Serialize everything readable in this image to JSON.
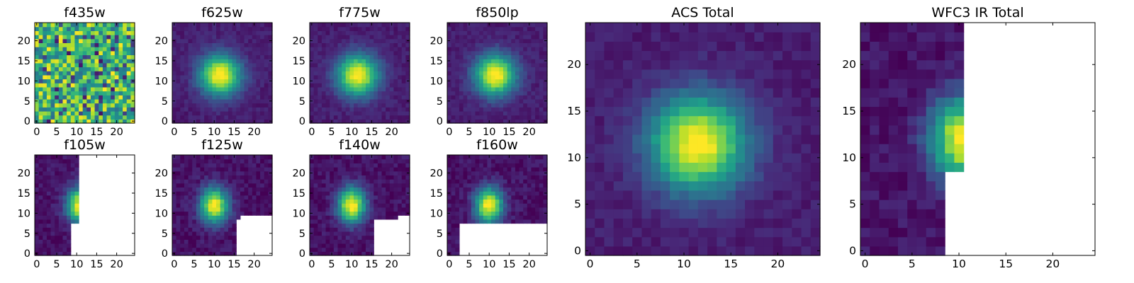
{
  "chart_data": [
    {
      "id": "f435w",
      "title": "f435w",
      "type": "heatmap",
      "pattern": "noise",
      "seed": 7,
      "xlim": [
        0,
        24
      ],
      "ylim": [
        0,
        24
      ],
      "xticks": [
        0,
        5,
        10,
        15,
        20
      ],
      "yticks": [
        0,
        5,
        10,
        15,
        20
      ],
      "colormap": "viridis"
    },
    {
      "id": "f625w",
      "title": "f625w",
      "type": "heatmap",
      "pattern": "blob",
      "seed": 11,
      "center": [
        11.5,
        11.5
      ],
      "xlim": [
        0,
        24
      ],
      "ylim": [
        0,
        24
      ],
      "xticks": [
        0,
        5,
        10,
        15,
        20
      ],
      "yticks": [
        0,
        5,
        10,
        15,
        20
      ],
      "colormap": "viridis"
    },
    {
      "id": "f775w",
      "title": "f775w",
      "type": "heatmap",
      "pattern": "blob",
      "seed": 13,
      "center": [
        11.5,
        11.5
      ],
      "xlim": [
        0,
        24
      ],
      "ylim": [
        0,
        24
      ],
      "xticks": [
        0,
        5,
        10,
        15,
        20
      ],
      "yticks": [
        0,
        5,
        10,
        15,
        20
      ],
      "colormap": "viridis"
    },
    {
      "id": "f850lp",
      "title": "f850lp",
      "type": "heatmap",
      "pattern": "blob",
      "seed": 17,
      "center": [
        11.5,
        11.5
      ],
      "xlim": [
        0,
        24
      ],
      "ylim": [
        0,
        24
      ],
      "xticks": [
        0,
        5,
        10,
        15,
        20
      ],
      "yticks": [
        0,
        5,
        10,
        15,
        20
      ],
      "colormap": "viridis"
    },
    {
      "id": "f105w",
      "title": "f105w",
      "type": "heatmap",
      "pattern": "truncated",
      "seed": 19,
      "center": [
        11,
        12
      ],
      "coverage_max_col": [
        [
          0,
          8
        ],
        [
          8,
          10
        ]
      ],
      "xlim": [
        0,
        24
      ],
      "ylim": [
        0,
        24
      ],
      "xticks": [
        0,
        5,
        10,
        15,
        20
      ],
      "yticks": [
        0,
        5,
        10,
        15,
        20
      ],
      "colormap": "viridis"
    },
    {
      "id": "f125w",
      "title": "f125w",
      "type": "heatmap",
      "pattern": "truncated",
      "seed": 23,
      "center": [
        10,
        12
      ],
      "coverage_max_col": [
        [
          0,
          15
        ],
        [
          9,
          16
        ],
        [
          10,
          24
        ]
      ],
      "xlim": [
        0,
        24
      ],
      "ylim": [
        0,
        24
      ],
      "xticks": [
        0,
        5,
        10,
        15,
        20
      ],
      "yticks": [
        0,
        5,
        10,
        15,
        20
      ],
      "colormap": "viridis"
    },
    {
      "id": "f140w",
      "title": "f140w",
      "type": "heatmap",
      "pattern": "truncated",
      "seed": 29,
      "center": [
        10,
        12
      ],
      "coverage_max_col": [
        [
          0,
          15
        ],
        [
          9,
          21
        ],
        [
          10,
          24
        ]
      ],
      "xlim": [
        0,
        24
      ],
      "ylim": [
        0,
        24
      ],
      "xticks": [
        0,
        5,
        10,
        15,
        20
      ],
      "yticks": [
        0,
        5,
        10,
        15,
        20
      ],
      "colormap": "viridis"
    },
    {
      "id": "f160w",
      "title": "f160w",
      "type": "heatmap",
      "pattern": "truncated",
      "seed": 31,
      "center": [
        10,
        12
      ],
      "coverage_max_col": [
        [
          0,
          2
        ],
        [
          8,
          24
        ]
      ],
      "xlim": [
        0,
        24
      ],
      "ylim": [
        0,
        24
      ],
      "xticks": [
        0,
        5,
        10,
        15,
        20
      ],
      "yticks": [
        0,
        5,
        10,
        15,
        20
      ],
      "colormap": "viridis"
    },
    {
      "id": "acs_total",
      "title": "ACS Total",
      "type": "heatmap",
      "pattern": "blob",
      "seed": 37,
      "center": [
        11.5,
        11.5
      ],
      "xlim": [
        0,
        24
      ],
      "ylim": [
        0,
        24
      ],
      "xticks": [
        0,
        5,
        10,
        15,
        20
      ],
      "yticks": [
        0,
        5,
        10,
        15,
        20
      ],
      "colormap": "viridis"
    },
    {
      "id": "wfc3_total",
      "title": "WFC3 IR Total",
      "type": "heatmap",
      "pattern": "truncated",
      "seed": 41,
      "center": [
        10.5,
        12
      ],
      "coverage_max_col": [
        [
          0,
          8
        ],
        [
          9,
          10
        ],
        [
          24,
          10
        ]
      ],
      "xlim": [
        0,
        24
      ],
      "ylim": [
        0,
        24
      ],
      "xticks": [
        0,
        5,
        10,
        15,
        20
      ],
      "yticks": [
        0,
        5,
        10,
        15,
        20
      ],
      "colormap": "viridis"
    }
  ]
}
